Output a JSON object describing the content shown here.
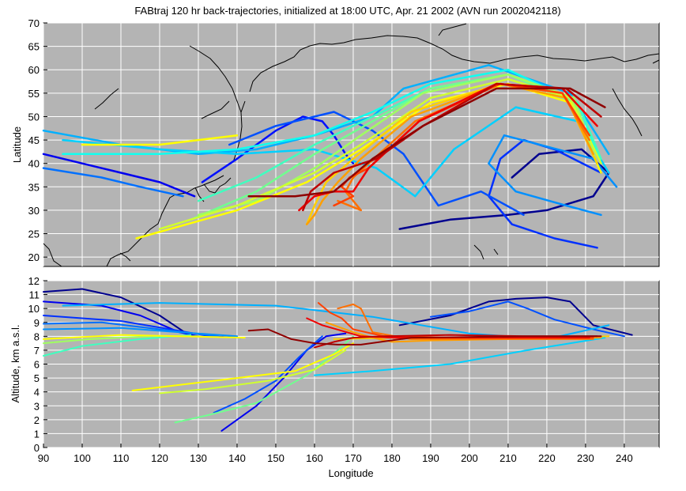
{
  "chart_data": [
    {
      "type": "line",
      "panel": "map",
      "title": "FABtraj 120 hr back-trajectories, initialized at 18:00 UTC, Apr. 21 2002 (AVN run 2002042118)",
      "xlabel": "",
      "ylabel": "Latitude",
      "xlim": [
        90,
        249
      ],
      "ylim": [
        18,
        70
      ],
      "yticks": [
        "20",
        "25",
        "30",
        "35",
        "40",
        "45",
        "50",
        "55",
        "60",
        "65",
        "70"
      ],
      "grid": true,
      "background": "#b4b4b4",
      "series": [
        {
          "color": "#00008f",
          "x": [
            182,
            195,
            210,
            220,
            232,
            236,
            229,
            218,
            211
          ],
          "y": [
            26,
            28,
            29,
            30,
            33,
            38,
            43,
            42,
            37
          ]
        },
        {
          "color": "#0000ef",
          "x": [
            129,
            120,
            110,
            100,
            90
          ],
          "y": [
            33,
            36,
            38,
            40,
            42
          ]
        },
        {
          "color": "#0010ff",
          "x": [
            131,
            140,
            150,
            157,
            162,
            165,
            168,
            170
          ],
          "y": [
            36,
            41,
            47,
            50,
            49,
            46,
            42,
            40
          ]
        },
        {
          "color": "#0030ff",
          "x": [
            233,
            222,
            211,
            205,
            208,
            214,
            222,
            234
          ],
          "y": [
            22,
            24,
            27,
            33,
            41,
            45,
            43,
            38
          ]
        },
        {
          "color": "#0050ff",
          "x": [
            138,
            150,
            165,
            175,
            183,
            192,
            203,
            214
          ],
          "y": [
            44,
            48,
            51,
            47,
            42,
            31,
            34,
            29
          ]
        },
        {
          "color": "#0070ff",
          "x": [
            126,
            115,
            105,
            90
          ],
          "y": [
            33,
            35,
            37,
            39
          ]
        },
        {
          "color": "#0090ff",
          "x": [
            234,
            225,
            212,
            205,
            209,
            232,
            238
          ],
          "y": [
            29,
            31,
            34,
            40,
            46,
            41,
            35
          ]
        },
        {
          "color": "#00b0ff",
          "x": [
            236,
            226,
            205,
            183,
            175,
            160,
            145,
            130,
            110,
            90
          ],
          "y": [
            42,
            55,
            61,
            56,
            50,
            46,
            43,
            42,
            44,
            47
          ]
        },
        {
          "color": "#00d0ff",
          "x": [
            236,
            228,
            212,
            196,
            186,
            176,
            160,
            140,
            120,
            95
          ],
          "y": [
            38,
            49,
            52,
            43,
            33,
            39,
            43,
            42,
            43,
            45
          ]
        },
        {
          "color": "#10ffef",
          "x": [
            234,
            228,
            210,
            190,
            175,
            160,
            140,
            120,
            95
          ],
          "y": [
            40,
            53,
            60,
            57,
            51,
            46,
            43,
            42,
            42
          ]
        },
        {
          "color": "#40ffbf",
          "x": [
            234,
            228,
            210,
            190,
            175,
            160,
            145,
            130
          ],
          "y": [
            41,
            53,
            59,
            56,
            50,
            44,
            37,
            32
          ]
        },
        {
          "color": "#70ff8f",
          "x": [
            233,
            227,
            210,
            190,
            175,
            160,
            145,
            128
          ],
          "y": [
            40,
            53,
            59,
            56,
            49,
            42,
            34,
            28
          ]
        },
        {
          "color": "#a0ff60",
          "x": [
            233,
            227,
            210,
            188,
            172,
            160,
            145,
            130
          ],
          "y": [
            40,
            54,
            59,
            55,
            46,
            39,
            32,
            29
          ]
        },
        {
          "color": "#d0ff30",
          "x": [
            234,
            226,
            210,
            190,
            172,
            160,
            140,
            120
          ],
          "y": [
            40,
            54,
            58,
            54,
            44,
            38,
            31,
            26
          ]
        },
        {
          "color": "#ffff00",
          "x": [
            234,
            226,
            210,
            190,
            172,
            158,
            140,
            114
          ],
          "y": [
            38,
            53,
            57,
            53,
            43,
            36,
            30,
            24
          ]
        },
        {
          "color": "#ffff00",
          "x": [
            100,
            120,
            140
          ],
          "y": [
            44,
            44,
            46
          ]
        },
        {
          "color": "#ffcf00",
          "x": [
            233,
            225,
            208,
            185,
            170,
            163,
            160,
            158
          ],
          "y": [
            40,
            54,
            57,
            51,
            41,
            36,
            31,
            27
          ]
        },
        {
          "color": "#ff9f00",
          "x": [
            232,
            225,
            208,
            185,
            172,
            166,
            162,
            160,
            158
          ],
          "y": [
            42,
            54,
            57,
            50,
            41,
            36,
            32,
            29,
            27
          ]
        },
        {
          "color": "#ff6f00",
          "x": [
            231,
            224,
            208,
            186,
            174,
            170,
            168,
            172,
            166
          ],
          "y": [
            45,
            55,
            57,
            49,
            40,
            37,
            34,
            30,
            32
          ]
        },
        {
          "color": "#ff4000",
          "x": [
            231,
            224,
            208,
            187,
            174,
            169,
            167,
            170,
            165
          ],
          "y": [
            46,
            55,
            57,
            49,
            39,
            37,
            35,
            33,
            31
          ]
        },
        {
          "color": "#ef0000",
          "x": [
            233,
            224,
            207,
            187,
            174,
            170,
            165,
            160,
            156
          ],
          "y": [
            48,
            56,
            57,
            49,
            39,
            34,
            34,
            33,
            30
          ]
        },
        {
          "color": "#bf0000",
          "x": [
            234,
            225,
            207,
            188,
            176,
            165,
            159,
            157
          ],
          "y": [
            50,
            56,
            57,
            48,
            41,
            38,
            34,
            30
          ]
        },
        {
          "color": "#8f0000",
          "x": [
            235,
            226,
            207,
            188,
            175,
            165,
            155,
            143
          ],
          "y": [
            52,
            56,
            56,
            48,
            41,
            34,
            33,
            33
          ]
        }
      ]
    },
    {
      "type": "line",
      "panel": "altitude",
      "title": "",
      "xlabel": "Longitude",
      "ylabel": "Altitude, km a.s.l.",
      "xlim": [
        90,
        249
      ],
      "ylim": [
        0,
        12
      ],
      "xticks": [
        "90",
        "100",
        "110",
        "120",
        "130",
        "140",
        "150",
        "160",
        "170",
        "180",
        "190",
        "200",
        "210",
        "220",
        "230",
        "240"
      ],
      "yticks": [
        "0",
        "1",
        "2",
        "3",
        "4",
        "5",
        "6",
        "7",
        "8",
        "9",
        "10",
        "11",
        "12"
      ],
      "grid": true,
      "background": "#b4b4b4",
      "series": [
        {
          "color": "#00008f",
          "x": [
            90,
            100,
            110,
            120,
            128
          ],
          "y": [
            11.2,
            11.4,
            10.8,
            9.5,
            8.0
          ]
        },
        {
          "color": "#00008f",
          "x": [
            182,
            195,
            205,
            212,
            220,
            226,
            232,
            242
          ],
          "y": [
            8.8,
            9.5,
            10.5,
            10.7,
            10.8,
            10.5,
            8.8,
            8.1
          ]
        },
        {
          "color": "#0000ef",
          "x": [
            90,
            105,
            115,
            125,
            130
          ],
          "y": [
            10.5,
            10.2,
            9.5,
            8.3,
            8.0
          ]
        },
        {
          "color": "#0000ef",
          "x": [
            136,
            145,
            152,
            158,
            163,
            168
          ],
          "y": [
            1.2,
            3.0,
            5.0,
            7.0,
            8.0,
            8.2
          ]
        },
        {
          "color": "#0030ff",
          "x": [
            90,
            110,
            125,
            133,
            141
          ],
          "y": [
            9.5,
            9.1,
            8.4,
            8.0,
            7.9
          ]
        },
        {
          "color": "#0050ff",
          "x": [
            134,
            142,
            150,
            156,
            162
          ],
          "y": [
            2.5,
            3.5,
            4.8,
            6.5,
            8.0
          ]
        },
        {
          "color": "#0050ff",
          "x": [
            190,
            200,
            210,
            215,
            222,
            232,
            240
          ],
          "y": [
            9.4,
            9.8,
            10.5,
            10.0,
            9.2,
            8.5,
            8.0
          ]
        },
        {
          "color": "#0070ff",
          "x": [
            90,
            105,
            120,
            135
          ],
          "y": [
            8.9,
            9.0,
            8.5,
            8.0
          ]
        },
        {
          "color": "#0090ff",
          "x": [
            90,
            110,
            125,
            140
          ],
          "y": [
            8.5,
            8.6,
            8.3,
            8.0
          ]
        },
        {
          "color": "#00b0ff",
          "x": [
            95,
            120,
            150,
            175,
            200,
            220,
            236
          ],
          "y": [
            10.2,
            10.4,
            10.2,
            9.4,
            8.2,
            7.8,
            8.8
          ]
        },
        {
          "color": "#00d0ff",
          "x": [
            160,
            175,
            195,
            215,
            235
          ],
          "y": [
            5.2,
            5.5,
            6.0,
            7.0,
            7.9
          ]
        },
        {
          "color": "#40ffbf",
          "x": [
            90,
            100,
            115,
            128
          ],
          "y": [
            6.6,
            7.3,
            7.8,
            8.1
          ]
        },
        {
          "color": "#70ff8f",
          "x": [
            124,
            132,
            145,
            158,
            166,
            170
          ],
          "y": [
            1.8,
            2.3,
            3.2,
            5.2,
            7.0,
            8.0
          ]
        },
        {
          "color": "#a0ff60",
          "x": [
            90,
            102,
            118,
            130
          ],
          "y": [
            7.5,
            7.8,
            8.0,
            8.0
          ]
        },
        {
          "color": "#ffff00",
          "x": [
            90,
            110,
            125,
            142
          ],
          "y": [
            7.8,
            8.1,
            8.0,
            7.9
          ]
        },
        {
          "color": "#ffff00",
          "x": [
            113,
            125,
            140,
            155,
            165,
            170
          ],
          "y": [
            4.1,
            4.5,
            5.0,
            5.5,
            6.7,
            7.5
          ]
        },
        {
          "color": "#d0ff30",
          "x": [
            120,
            132,
            148,
            160,
            168
          ],
          "y": [
            3.9,
            4.2,
            4.8,
            5.6,
            7.0
          ]
        },
        {
          "color": "#ffcf00",
          "x": [
            165,
            180,
            200,
            220,
            236
          ],
          "y": [
            7.8,
            7.9,
            7.9,
            7.9,
            8.0
          ]
        },
        {
          "color": "#ff9f00",
          "x": [
            163,
            170,
            175,
            180,
            190,
            210,
            234
          ],
          "y": [
            9.0,
            8.3,
            7.9,
            7.6,
            7.7,
            7.8,
            7.9
          ]
        },
        {
          "color": "#ff6f00",
          "x": [
            166,
            170,
            172,
            175,
            185,
            205,
            232
          ],
          "y": [
            10.0,
            10.3,
            10.0,
            8.3,
            7.8,
            7.8,
            7.8
          ]
        },
        {
          "color": "#ff4000",
          "x": [
            161,
            164,
            167,
            170,
            178,
            200,
            232
          ],
          "y": [
            10.4,
            9.7,
            9.3,
            8.5,
            8.0,
            7.9,
            7.9
          ]
        },
        {
          "color": "#ef0000",
          "x": [
            158,
            162,
            167,
            172,
            180,
            200,
            231
          ],
          "y": [
            9.3,
            8.8,
            8.4,
            8.0,
            7.9,
            7.9,
            7.9
          ]
        },
        {
          "color": "#bf0000",
          "x": [
            160,
            165,
            170,
            178,
            195,
            215,
            233
          ],
          "y": [
            7.2,
            7.6,
            7.9,
            8.0,
            8.1,
            8.0,
            8.0
          ]
        },
        {
          "color": "#8f0000",
          "x": [
            143,
            148,
            154,
            160,
            166,
            172,
            185,
            215,
            234
          ],
          "y": [
            8.4,
            8.5,
            7.8,
            7.5,
            7.4,
            7.4,
            7.9,
            8.0,
            8.0
          ]
        }
      ]
    }
  ]
}
